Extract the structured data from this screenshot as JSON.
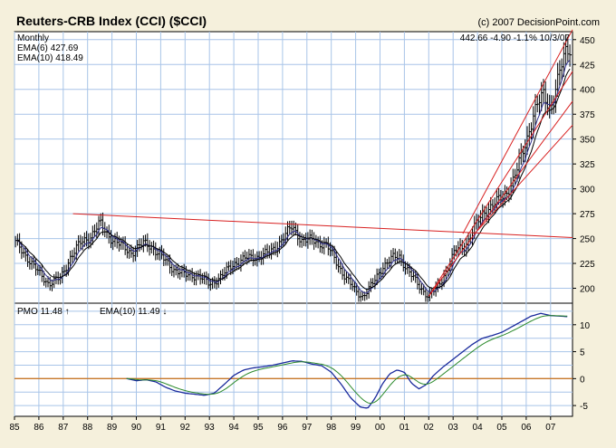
{
  "chart_data": {
    "type": "bar",
    "title": "Reuters-CRB Index (CCI) ($CCI)",
    "copyright": "(c) 2007 DecisionPoint.com",
    "period": "Monthly",
    "readout": {
      "last": "442.66",
      "change": "-4.90",
      "pct": "-1.1%",
      "date": "10/3/07"
    },
    "legend_main": [
      {
        "label": "EMA(6)",
        "value": "427.69",
        "color": "#2e2e8c"
      },
      {
        "label": "EMA(10)",
        "value": "418.49",
        "color": "#7a1a6a"
      }
    ],
    "legend_pmo": [
      {
        "label": "PMO",
        "value": "11.48",
        "color": "#1a2a9c",
        "arrow": "↑"
      },
      {
        "label": "EMA(10)",
        "value": "11.49",
        "color": "#2c8a2c",
        "arrow": "↓"
      }
    ],
    "x_ticks": [
      "85",
      "86",
      "87",
      "88",
      "89",
      "90",
      "91",
      "92",
      "93",
      "94",
      "95",
      "96",
      "97",
      "98",
      "99",
      "00",
      "01",
      "02",
      "03",
      "04",
      "05",
      "06",
      "07"
    ],
    "y_ticks_main": [
      200,
      225,
      250,
      275,
      300,
      325,
      350,
      375,
      400,
      425,
      450
    ],
    "y_ticks_pmo": [
      10,
      5,
      0,
      -5
    ],
    "ylim_main": [
      185,
      458
    ],
    "ylim_pmo": [
      -7,
      14
    ],
    "xlim": [
      1985.0,
      2007.9
    ],
    "colors": {
      "frame": "#f5f0dc",
      "plot_bg": "#ffffff",
      "grid": "#a8c4e8",
      "bars": "#000000",
      "ema_fast": "#2e2e8c",
      "ema_slow": "#000000",
      "trend": "#d82020",
      "pmo": "#1a2a9c",
      "pmo_signal": "#2c8a2c",
      "zero_line": "#c8782a"
    },
    "anchors": [
      [
        1985.0,
        247
      ],
      [
        1985.5,
        232
      ],
      [
        1986.0,
        215
      ],
      [
        1986.4,
        205
      ],
      [
        1986.9,
        210
      ],
      [
        1987.3,
        232
      ],
      [
        1987.7,
        245
      ],
      [
        1988.1,
        252
      ],
      [
        1988.5,
        265
      ],
      [
        1988.9,
        252
      ],
      [
        1989.4,
        242
      ],
      [
        1989.8,
        236
      ],
      [
        1990.3,
        245
      ],
      [
        1990.6,
        243
      ],
      [
        1991.0,
        232
      ],
      [
        1991.5,
        220
      ],
      [
        1992.0,
        213
      ],
      [
        1992.5,
        213
      ],
      [
        1993.0,
        204
      ],
      [
        1993.5,
        212
      ],
      [
        1994.0,
        225
      ],
      [
        1994.5,
        230
      ],
      [
        1995.0,
        232
      ],
      [
        1995.5,
        236
      ],
      [
        1996.0,
        250
      ],
      [
        1996.4,
        262
      ],
      [
        1996.8,
        248
      ],
      [
        1997.3,
        248
      ],
      [
        1997.8,
        243
      ],
      [
        1998.2,
        227
      ],
      [
        1998.6,
        210
      ],
      [
        1999.0,
        197
      ],
      [
        1999.3,
        192
      ],
      [
        1999.7,
        204
      ],
      [
        2000.1,
        222
      ],
      [
        2000.5,
        230
      ],
      [
        2000.8,
        232
      ],
      [
        2001.2,
        216
      ],
      [
        2001.6,
        202
      ],
      [
        2002.0,
        192
      ],
      [
        2002.4,
        202
      ],
      [
        2002.8,
        222
      ],
      [
        2003.1,
        238
      ],
      [
        2003.5,
        243
      ],
      [
        2003.9,
        262
      ],
      [
        2004.3,
        278
      ],
      [
        2004.7,
        285
      ],
      [
        2005.1,
        293
      ],
      [
        2005.5,
        310
      ],
      [
        2005.9,
        340
      ],
      [
        2006.3,
        375
      ],
      [
        2006.7,
        395
      ],
      [
        2007.0,
        382
      ],
      [
        2007.3,
        408
      ],
      [
        2007.6,
        438
      ],
      [
        2007.76,
        443
      ]
    ],
    "pmo_anchors": [
      [
        1989.6,
        0
      ],
      [
        1990.0,
        -0.4
      ],
      [
        1990.4,
        -0.2
      ],
      [
        1990.8,
        -0.6
      ],
      [
        1991.2,
        -1.6
      ],
      [
        1991.6,
        -2.3
      ],
      [
        1992.0,
        -2.7
      ],
      [
        1992.4,
        -2.9
      ],
      [
        1992.8,
        -3.1
      ],
      [
        1993.2,
        -2.7
      ],
      [
        1993.6,
        -1.1
      ],
      [
        1994.0,
        0.6
      ],
      [
        1994.4,
        1.6
      ],
      [
        1994.8,
        2.0
      ],
      [
        1995.2,
        2.2
      ],
      [
        1995.6,
        2.5
      ],
      [
        1996.0,
        2.9
      ],
      [
        1996.4,
        3.3
      ],
      [
        1996.8,
        3.2
      ],
      [
        1997.2,
        2.7
      ],
      [
        1997.6,
        2.4
      ],
      [
        1998.0,
        1.2
      ],
      [
        1998.4,
        -1.0
      ],
      [
        1998.8,
        -3.6
      ],
      [
        1999.2,
        -5.3
      ],
      [
        1999.5,
        -5.5
      ],
      [
        1999.8,
        -3.6
      ],
      [
        2000.1,
        -1.0
      ],
      [
        2000.4,
        0.9
      ],
      [
        2000.7,
        1.6
      ],
      [
        2001.0,
        1.2
      ],
      [
        2001.3,
        -0.9
      ],
      [
        2001.6,
        -1.9
      ],
      [
        2001.9,
        -1.1
      ],
      [
        2002.2,
        0.6
      ],
      [
        2002.6,
        2.2
      ],
      [
        2003.0,
        3.6
      ],
      [
        2003.4,
        5.0
      ],
      [
        2003.8,
        6.4
      ],
      [
        2004.2,
        7.5
      ],
      [
        2004.6,
        8.0
      ],
      [
        2005.0,
        8.6
      ],
      [
        2005.4,
        9.6
      ],
      [
        2005.8,
        10.6
      ],
      [
        2006.2,
        11.6
      ],
      [
        2006.6,
        12.1
      ],
      [
        2007.0,
        11.7
      ],
      [
        2007.4,
        11.6
      ],
      [
        2007.7,
        11.5
      ]
    ],
    "trendlines": [
      {
        "from": [
          1987.4,
          275
        ],
        "to": [
          2007.9,
          251
        ]
      },
      {
        "from": [
          2002.0,
          192
        ],
        "to": [
          2007.9,
          418
        ]
      },
      {
        "from": [
          2002.0,
          192
        ],
        "to": [
          2007.9,
          388
        ]
      },
      {
        "from": [
          2003.4,
          255
        ],
        "to": [
          2007.9,
          460
        ]
      },
      {
        "from": [
          2004.0,
          258
        ],
        "to": [
          2007.9,
          364
        ]
      }
    ]
  }
}
